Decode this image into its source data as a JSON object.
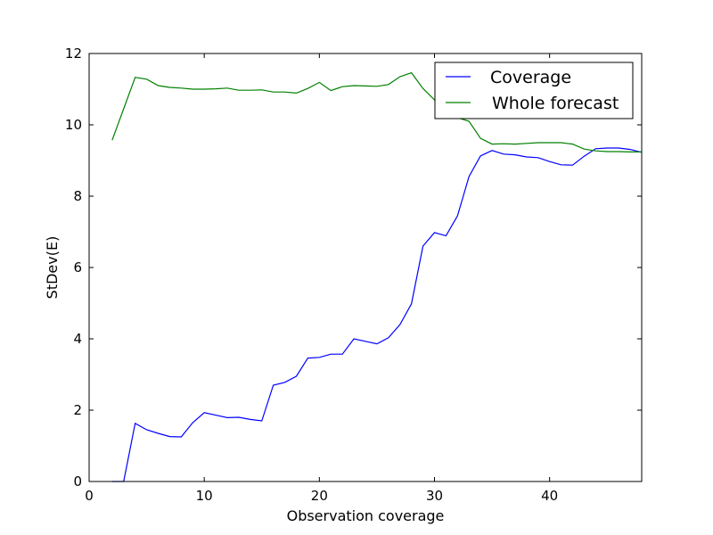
{
  "chart_data": {
    "type": "line",
    "xlabel": "Observation coverage",
    "ylabel": "StDev(E)",
    "xlim": [
      0,
      48
    ],
    "ylim": [
      0,
      12
    ],
    "xticks": [
      0,
      10,
      20,
      30,
      40
    ],
    "yticks": [
      0,
      2,
      4,
      6,
      8,
      10,
      12
    ],
    "grid": false,
    "legend_position": "top-right",
    "series": [
      {
        "name": "Coverage",
        "color": "#0000ff",
        "x": [
          2,
          3,
          4,
          5,
          6,
          7,
          8,
          9,
          10,
          11,
          12,
          13,
          14,
          15,
          16,
          17,
          18,
          19,
          20,
          21,
          22,
          23,
          24,
          25,
          26,
          27,
          28,
          29,
          30,
          31,
          32,
          33,
          34,
          35,
          36,
          37,
          38,
          39,
          40,
          41,
          42,
          43,
          44,
          45,
          46,
          47,
          48
        ],
        "y": [
          0,
          0,
          1.63,
          1.45,
          1.35,
          1.26,
          1.25,
          1.65,
          1.93,
          1.86,
          1.79,
          1.8,
          1.74,
          1.7,
          2.7,
          2.78,
          2.95,
          3.46,
          3.48,
          3.57,
          3.57,
          4.0,
          3.93,
          3.86,
          4.03,
          4.4,
          4.98,
          6.6,
          6.98,
          6.89,
          7.45,
          8.55,
          9.13,
          9.28,
          9.18,
          9.16,
          9.1,
          9.08,
          8.97,
          8.88,
          8.87,
          9.12,
          9.33,
          9.35,
          9.35,
          9.31,
          9.23
        ]
      },
      {
        "name": "Whole forecast",
        "color": "#008000",
        "x": [
          2,
          3,
          4,
          5,
          6,
          7,
          8,
          9,
          10,
          11,
          12,
          13,
          14,
          15,
          16,
          17,
          18,
          19,
          20,
          21,
          22,
          23,
          24,
          25,
          26,
          27,
          28,
          29,
          30,
          31,
          32,
          33,
          34,
          35,
          36,
          37,
          38,
          39,
          40,
          41,
          42,
          43,
          44,
          45,
          46,
          47,
          48
        ],
        "y": [
          9.57,
          10.45,
          11.33,
          11.28,
          11.1,
          11.05,
          11.03,
          11.0,
          11.0,
          11.01,
          11.03,
          10.97,
          10.97,
          10.98,
          10.92,
          10.92,
          10.89,
          11.02,
          11.19,
          10.96,
          11.07,
          11.1,
          11.09,
          11.08,
          11.13,
          11.35,
          11.46,
          11.02,
          10.7,
          10.5,
          10.2,
          10.1,
          9.62,
          9.46,
          9.47,
          9.46,
          9.48,
          9.5,
          9.5,
          9.5,
          9.46,
          9.32,
          9.27,
          9.25,
          9.25,
          9.24,
          9.24
        ]
      }
    ]
  }
}
